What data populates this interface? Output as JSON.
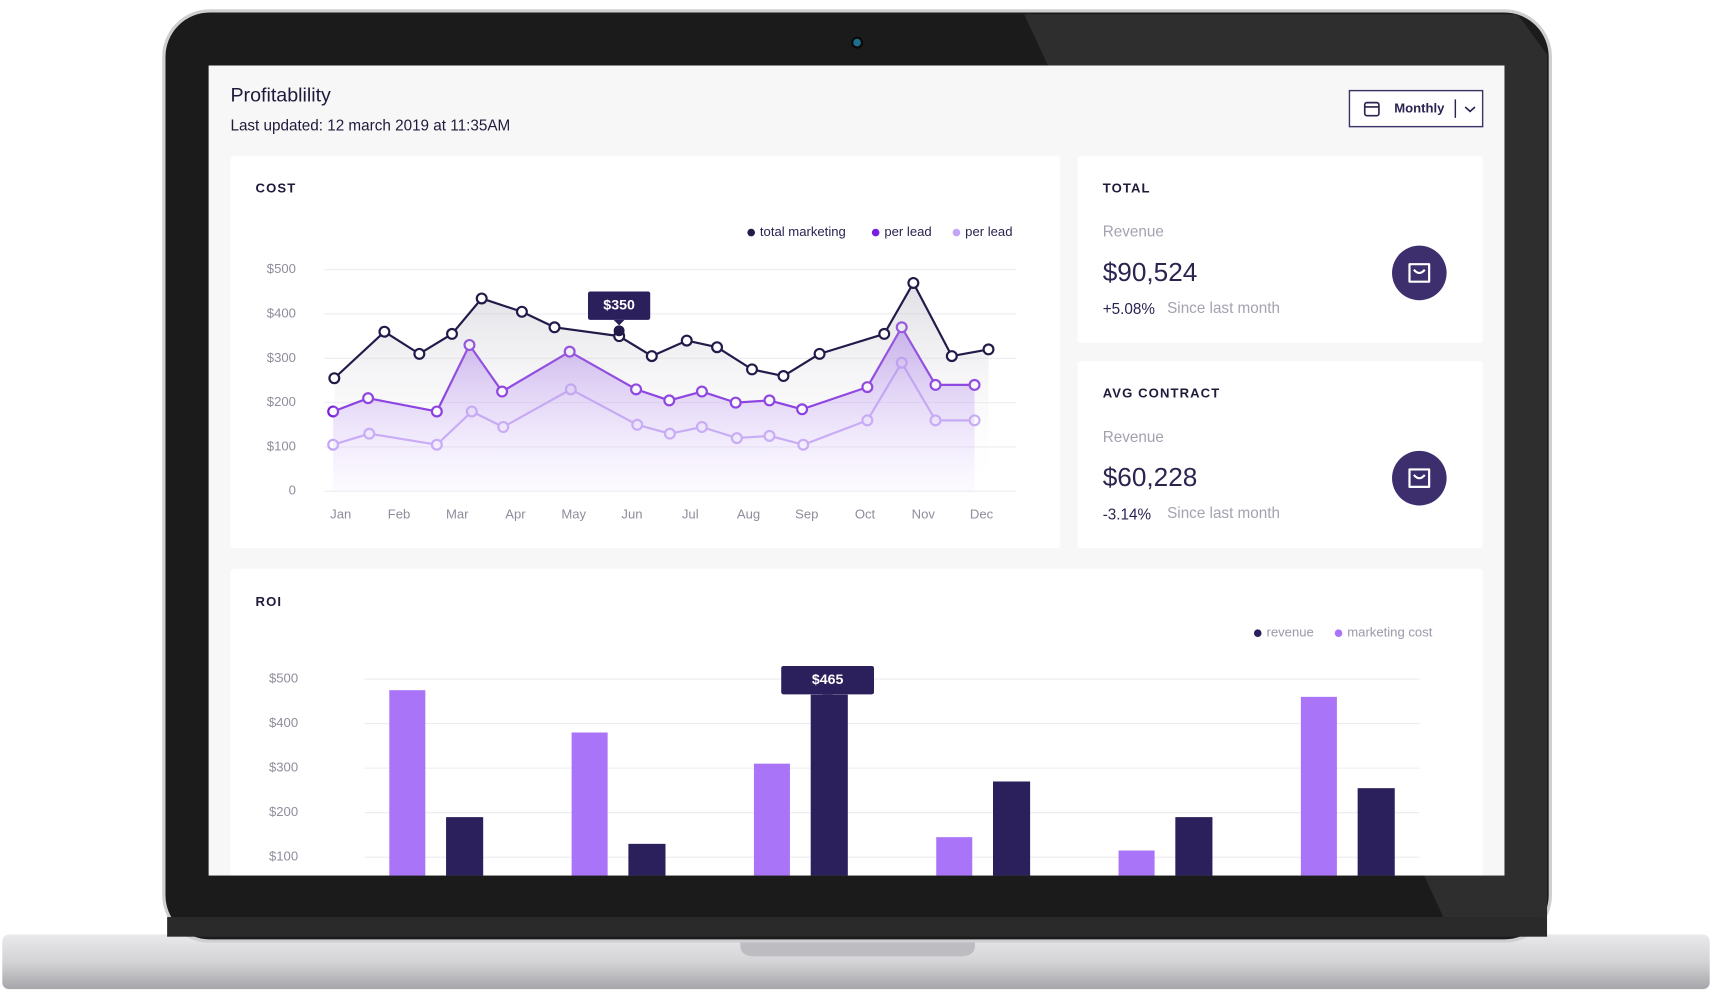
{
  "header": {
    "title": "Profitablility",
    "subtitle": "Last updated: 12 march 2019 at 11:35AM",
    "period": "Monthly"
  },
  "cards": [
    {
      "title": "TOTAL",
      "label": "Revenue",
      "value": "$90,524",
      "change": "+5.08%",
      "note": "Since last month"
    },
    {
      "title": "AVG CONTRACT",
      "label": "Revenue",
      "value": "$60,228",
      "change": "-3.14%",
      "note": "Since last month"
    }
  ],
  "chart_data": [
    {
      "type": "line",
      "title": "COST",
      "annotation": "$350",
      "xlim": [
        0.7,
        12.6
      ],
      "xticks": [
        {
          "value": 1,
          "label": "Jan"
        },
        {
          "value": 2,
          "label": "Feb"
        },
        {
          "value": 3,
          "label": "Mar"
        },
        {
          "value": 4,
          "label": "Apr"
        },
        {
          "value": 5,
          "label": "May"
        },
        {
          "value": 6,
          "label": "Jun"
        },
        {
          "value": 7,
          "label": "Jul"
        },
        {
          "value": 8,
          "label": "Aug"
        },
        {
          "value": 9,
          "label": "Sep"
        },
        {
          "value": 10,
          "label": "Oct"
        },
        {
          "value": 11,
          "label": "Nov"
        },
        {
          "value": 12,
          "label": "Dec"
        }
      ],
      "ylim": [
        0,
        500
      ],
      "yticks": [
        0,
        {
          "value": 100,
          "label": "$100"
        },
        {
          "value": 200,
          "label": "$200"
        },
        {
          "value": 300,
          "label": "$300"
        },
        {
          "value": 400,
          "label": "$400"
        },
        {
          "value": 500,
          "label": "$500"
        }
      ],
      "grid": true,
      "series": [
        {
          "name": "total marketing",
          "color": "#221b4a",
          "x": [
            0.89,
            1.75,
            2.35,
            2.91,
            3.42,
            4.11,
            4.67,
            5.78,
            6.34,
            6.94,
            7.46,
            8.06,
            8.6,
            9.22,
            10.33,
            10.83,
            11.49,
            12.12
          ],
          "values": [
            255,
            360,
            310,
            355,
            435,
            405,
            370,
            350,
            305,
            340,
            325,
            275,
            260,
            310,
            355,
            470,
            305,
            320
          ]
        },
        {
          "name": "per lead",
          "color": "#7a1fe0",
          "x": [
            0.87,
            1.47,
            2.65,
            3.21,
            3.77,
            4.93,
            6.07,
            6.64,
            7.2,
            7.78,
            8.36,
            8.92,
            10.04,
            10.63,
            11.21,
            11.88
          ],
          "values": [
            180,
            210,
            180,
            330,
            225,
            315,
            230,
            205,
            225,
            200,
            205,
            185,
            235,
            370,
            240,
            240
          ]
        },
        {
          "name": "per lead",
          "color": "#c3a4f6",
          "x": [
            0.87,
            1.49,
            2.65,
            3.25,
            3.79,
            4.95,
            6.09,
            6.65,
            7.2,
            7.8,
            8.36,
            8.94,
            10.04,
            10.63,
            11.21,
            11.88
          ],
          "values": [
            105,
            130,
            105,
            180,
            145,
            230,
            150,
            130,
            145,
            120,
            125,
            105,
            160,
            290,
            160,
            160
          ]
        }
      ]
    },
    {
      "type": "bar",
      "title": "ROI",
      "annotation": "$465",
      "categories": [
        null,
        null,
        null,
        null,
        null,
        null
      ],
      "ylim": [
        0,
        500
      ],
      "yticks": [
        {
          "value": 100,
          "label": "$100"
        },
        {
          "value": 200,
          "label": "$200"
        },
        {
          "value": 300,
          "label": "$300"
        },
        {
          "value": 400,
          "label": "$400"
        },
        {
          "value": 500,
          "label": "$500"
        }
      ],
      "grid": true,
      "series": [
        {
          "name": "revenue",
          "color": "#2b1f5c",
          "values": [
            190,
            130,
            465,
            270,
            190,
            255
          ]
        },
        {
          "name": "marketing cost",
          "color": "#a974f7",
          "values": [
            475,
            380,
            310,
            145,
            115,
            460
          ]
        }
      ]
    }
  ]
}
